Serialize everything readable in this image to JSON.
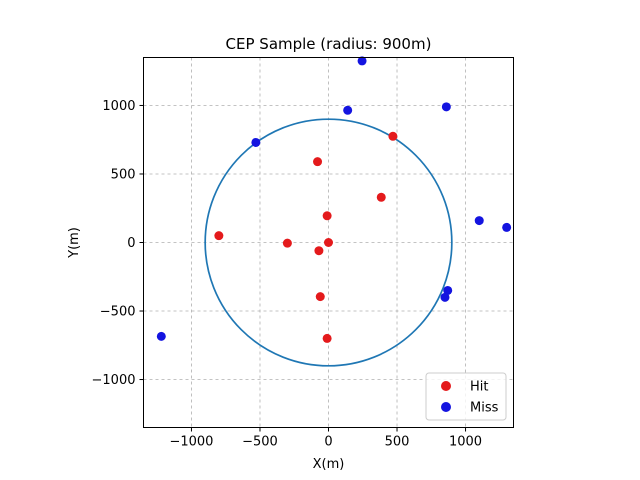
{
  "chart_data": {
    "type": "scatter",
    "title": "CEP Sample (radius: 900m)",
    "xlabel": "X(m)",
    "ylabel": "Y(m)",
    "xlim": [
      -1350,
      1350
    ],
    "ylim": [
      -1350,
      1350
    ],
    "xticks": [
      -1000,
      -500,
      0,
      500,
      1000
    ],
    "yticks": [
      -1000,
      -500,
      0,
      500,
      1000
    ],
    "xtick_labels": [
      "−1000",
      "−500",
      "0",
      "500",
      "1000"
    ],
    "ytick_labels": [
      "−1000",
      "−500",
      "0",
      "500",
      "1000"
    ],
    "grid": true,
    "legend_position": "lower-right",
    "circle": {
      "center": [
        0,
        0
      ],
      "radius": 900,
      "color": "#1f77b4"
    },
    "series": [
      {
        "name": "Hit",
        "color": "#e41a1c",
        "points": [
          [
            -800,
            50
          ],
          [
            -300,
            -5
          ],
          [
            -80,
            590
          ],
          [
            -10,
            195
          ],
          [
            0,
            0
          ],
          [
            -70,
            -60
          ],
          [
            -60,
            -395
          ],
          [
            -10,
            -700
          ],
          [
            385,
            330
          ],
          [
            470,
            775
          ]
        ]
      },
      {
        "name": "Miss",
        "color": "#1414e0",
        "points": [
          [
            -1220,
            -685
          ],
          [
            -530,
            730
          ],
          [
            140,
            965
          ],
          [
            245,
            1325
          ],
          [
            860,
            990
          ],
          [
            1100,
            160
          ],
          [
            1300,
            110
          ],
          [
            870,
            -350
          ],
          [
            850,
            -400
          ]
        ]
      }
    ]
  }
}
